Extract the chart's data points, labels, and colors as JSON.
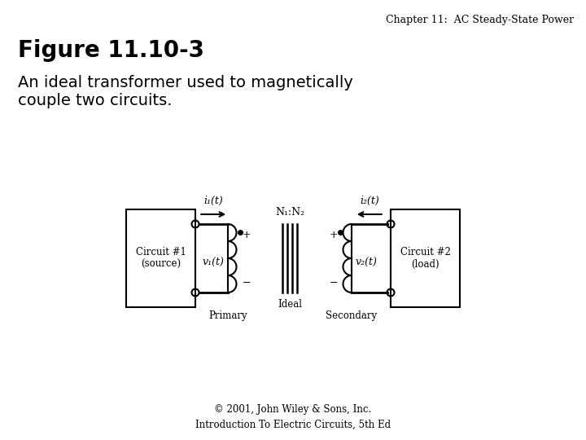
{
  "chapter_header": "Chapter 11:  AC Steady-State Power",
  "figure_title": "Figure 11.10-3",
  "figure_desc": "An ideal transformer used to magnetically\ncouple two circuits.",
  "copyright": "© 2001, John Wiley & Sons, Inc.\nIntroduction To Electric Circuits, 5th Ed",
  "bg_color": "#ffffff",
  "diagram": {
    "circuit1_label": "Circuit #1\n(source)",
    "circuit2_label": "Circuit #2\n(load)",
    "primary_label": "Primary",
    "secondary_label": "Secondary",
    "ideal_label": "Ideal",
    "ratio_label": "N₁:N₂",
    "i1_label": "i₁(t)",
    "i2_label": "i₂(t)",
    "v1_label": "v₁(t)",
    "v2_label": "v₂(t)"
  }
}
